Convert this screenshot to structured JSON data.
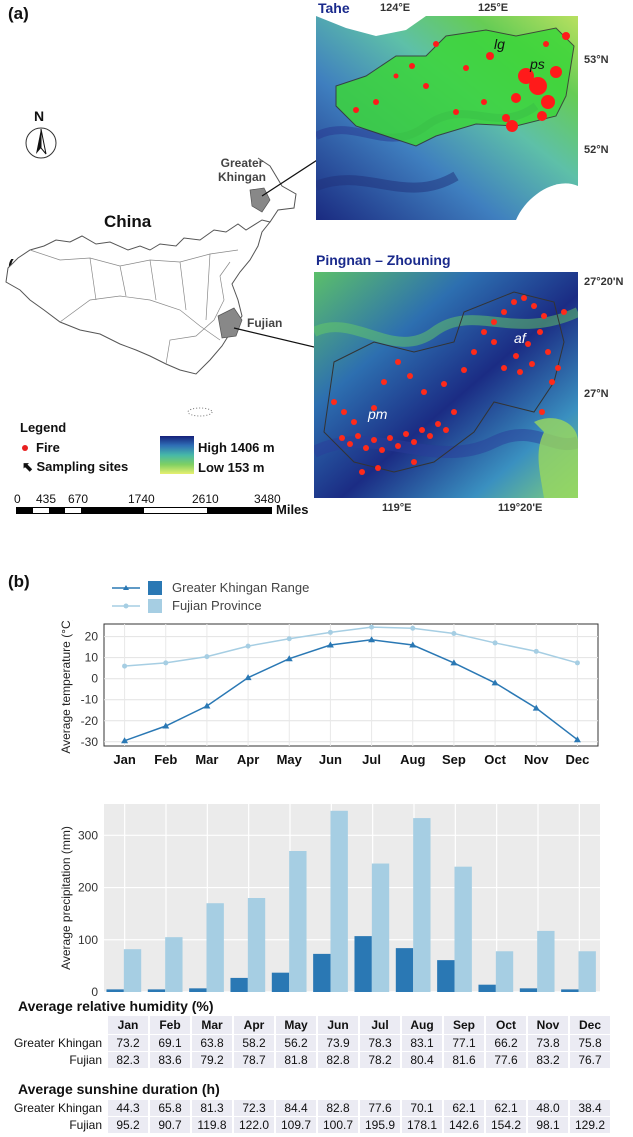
{
  "panel_a": {
    "label": "(a)",
    "china_label": "China",
    "greater_khingan_label_1": "Greater",
    "greater_khingan_label_2": "Khingan",
    "fujian_label": "Fujian",
    "north_label": "N",
    "legend_title": "Legend",
    "legend_fire": "Fire",
    "legend_sites": "Sampling sites",
    "elev_high": "High 1406 m",
    "elev_low": "Low 153 m",
    "scale_ticks": [
      "0",
      "435",
      "670",
      "1740",
      "2610",
      "3480"
    ],
    "scale_unit": "Miles",
    "map_top": {
      "title": "Tahe",
      "lon_labels": [
        "124°E",
        "125°E"
      ],
      "lat_labels": [
        "53°N",
        "52°N"
      ],
      "sites": [
        "lg",
        "ps"
      ]
    },
    "map_bottom": {
      "title": "Pingnan – Zhouning",
      "lon_labels": [
        "119°E",
        "119°20'E"
      ],
      "lat_labels": [
        "27°20'N",
        "27°N"
      ],
      "sites": [
        "af",
        "pm"
      ]
    }
  },
  "panel_b": {
    "label": "(b)",
    "legend": [
      "Greater Khingan Range",
      "Fujian Province"
    ],
    "colors": {
      "khingan": "#2a78b4",
      "fujian": "#a6cee3",
      "panel_bg": "#ebebeb"
    },
    "humidity_title": "Average relative humidity (%)",
    "sunshine_title": "Average sunshine duration (h)",
    "row_labels": [
      "Greater Khingan",
      "Fujian"
    ]
  },
  "chart_data": [
    {
      "type": "line",
      "categories": [
        "Jan",
        "Feb",
        "Mar",
        "Apr",
        "May",
        "Jun",
        "Jul",
        "Aug",
        "Sep",
        "Oct",
        "Nov",
        "Dec"
      ],
      "series": [
        {
          "name": "Greater Khingan Range",
          "values": [
            -29.5,
            -22.5,
            -13,
            0.5,
            9.5,
            16,
            18.5,
            16,
            7.5,
            -2,
            -14,
            -29
          ]
        },
        {
          "name": "Fujian Province",
          "values": [
            6,
            7.5,
            10.5,
            15.5,
            19,
            22,
            24.5,
            24,
            21.5,
            17,
            13,
            7.5
          ]
        }
      ],
      "ylabel": "Average temperature (°C)",
      "ylim": [
        -32,
        26
      ],
      "yticks": [
        20,
        10,
        0,
        -10,
        -20,
        -30
      ]
    },
    {
      "type": "bar",
      "categories": [
        "Jan",
        "Feb",
        "Mar",
        "Apr",
        "May",
        "Jun",
        "Jul",
        "Aug",
        "Sep",
        "Oct",
        "Nov",
        "Dec"
      ],
      "series": [
        {
          "name": "Greater Khingan Range",
          "values": [
            5,
            5,
            7,
            27,
            37,
            73,
            107,
            84,
            61,
            14,
            7,
            5
          ]
        },
        {
          "name": "Fujian Province",
          "values": [
            82,
            105,
            170,
            180,
            270,
            347,
            246,
            333,
            240,
            78,
            117,
            78
          ]
        }
      ],
      "ylabel": "Average precipitation (mm)",
      "ylim": [
        0,
        360
      ],
      "yticks": [
        300,
        200,
        100,
        0
      ]
    },
    {
      "type": "table",
      "title": "Average relative humidity (%)",
      "columns": [
        "Jan",
        "Feb",
        "Mar",
        "Apr",
        "May",
        "Jun",
        "Jul",
        "Aug",
        "Sep",
        "Oct",
        "Nov",
        "Dec"
      ],
      "rows": [
        {
          "label": "Greater Khingan",
          "values": [
            "73.2",
            "69.1",
            "63.8",
            "58.2",
            "56.2",
            "73.9",
            "78.3",
            "83.1",
            "77.1",
            "66.2",
            "73.8",
            "75.8"
          ]
        },
        {
          "label": "Fujian",
          "values": [
            "82.3",
            "83.6",
            "79.2",
            "78.7",
            "81.8",
            "82.8",
            "78.2",
            "80.4",
            "81.6",
            "77.6",
            "83.2",
            "76.7"
          ]
        }
      ]
    },
    {
      "type": "table",
      "title": "Average sunshine duration (h)",
      "columns": [
        "Jan",
        "Feb",
        "Mar",
        "Apr",
        "May",
        "Jun",
        "Jul",
        "Aug",
        "Sep",
        "Oct",
        "Nov",
        "Dec"
      ],
      "rows": [
        {
          "label": "Greater Khingan",
          "values": [
            "44.3",
            "65.8",
            "81.3",
            "72.3",
            "84.4",
            "82.8",
            "77.6",
            "70.1",
            "62.1",
            "62.1",
            "48.0",
            "38.4"
          ]
        },
        {
          "label": "Fujian",
          "values": [
            "95.2",
            "90.7",
            "119.8",
            "122.0",
            "109.7",
            "100.7",
            "195.9",
            "178.1",
            "142.6",
            "154.2",
            "98.1",
            "129.2"
          ]
        }
      ]
    }
  ]
}
